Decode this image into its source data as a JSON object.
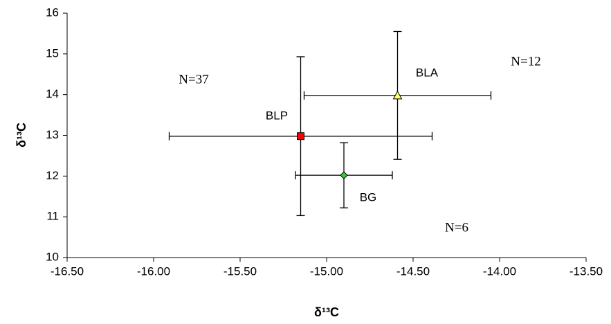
{
  "chart_data": {
    "type": "scatter",
    "x_label": "δ¹³C",
    "y_label": "δ¹³C",
    "xlim": [
      -16.5,
      -13.5
    ],
    "xticks": [
      {
        "value": -16.5,
        "label": "-16.50"
      },
      {
        "value": -16.0,
        "label": "-16.00"
      },
      {
        "value": -15.5,
        "label": "-15.50"
      },
      {
        "value": -15.0,
        "label": "-15.00"
      },
      {
        "value": -14.5,
        "label": "-14.50"
      },
      {
        "value": -14.0,
        "label": "-14.00"
      },
      {
        "value": -13.5,
        "label": "-13.50"
      }
    ],
    "ylim": [
      10,
      16
    ],
    "yticks": [
      10,
      11,
      12,
      13,
      14,
      15,
      16
    ],
    "grid": false,
    "series": [
      {
        "name": "BLP",
        "color": "#ff0000",
        "marker": "square",
        "x": [
          -15.15
        ],
        "values": [
          12.98
        ],
        "xerr": [
          0.76
        ],
        "yerr": [
          1.95
        ]
      },
      {
        "name": "BLA",
        "color": "#ffff66",
        "marker": "triangle",
        "x": [
          -14.59
        ],
        "values": [
          13.98
        ],
        "xerr": [
          0.54
        ],
        "yerr": [
          1.57
        ]
      },
      {
        "name": "BG",
        "color": "#33cc33",
        "marker": "diamond",
        "x": [
          -14.9
        ],
        "values": [
          12.02
        ],
        "xerr": [
          0.28
        ],
        "yerr": [
          0.8
        ]
      }
    ],
    "annotations": [
      "N=37",
      "N=12",
      "N=6"
    ]
  }
}
